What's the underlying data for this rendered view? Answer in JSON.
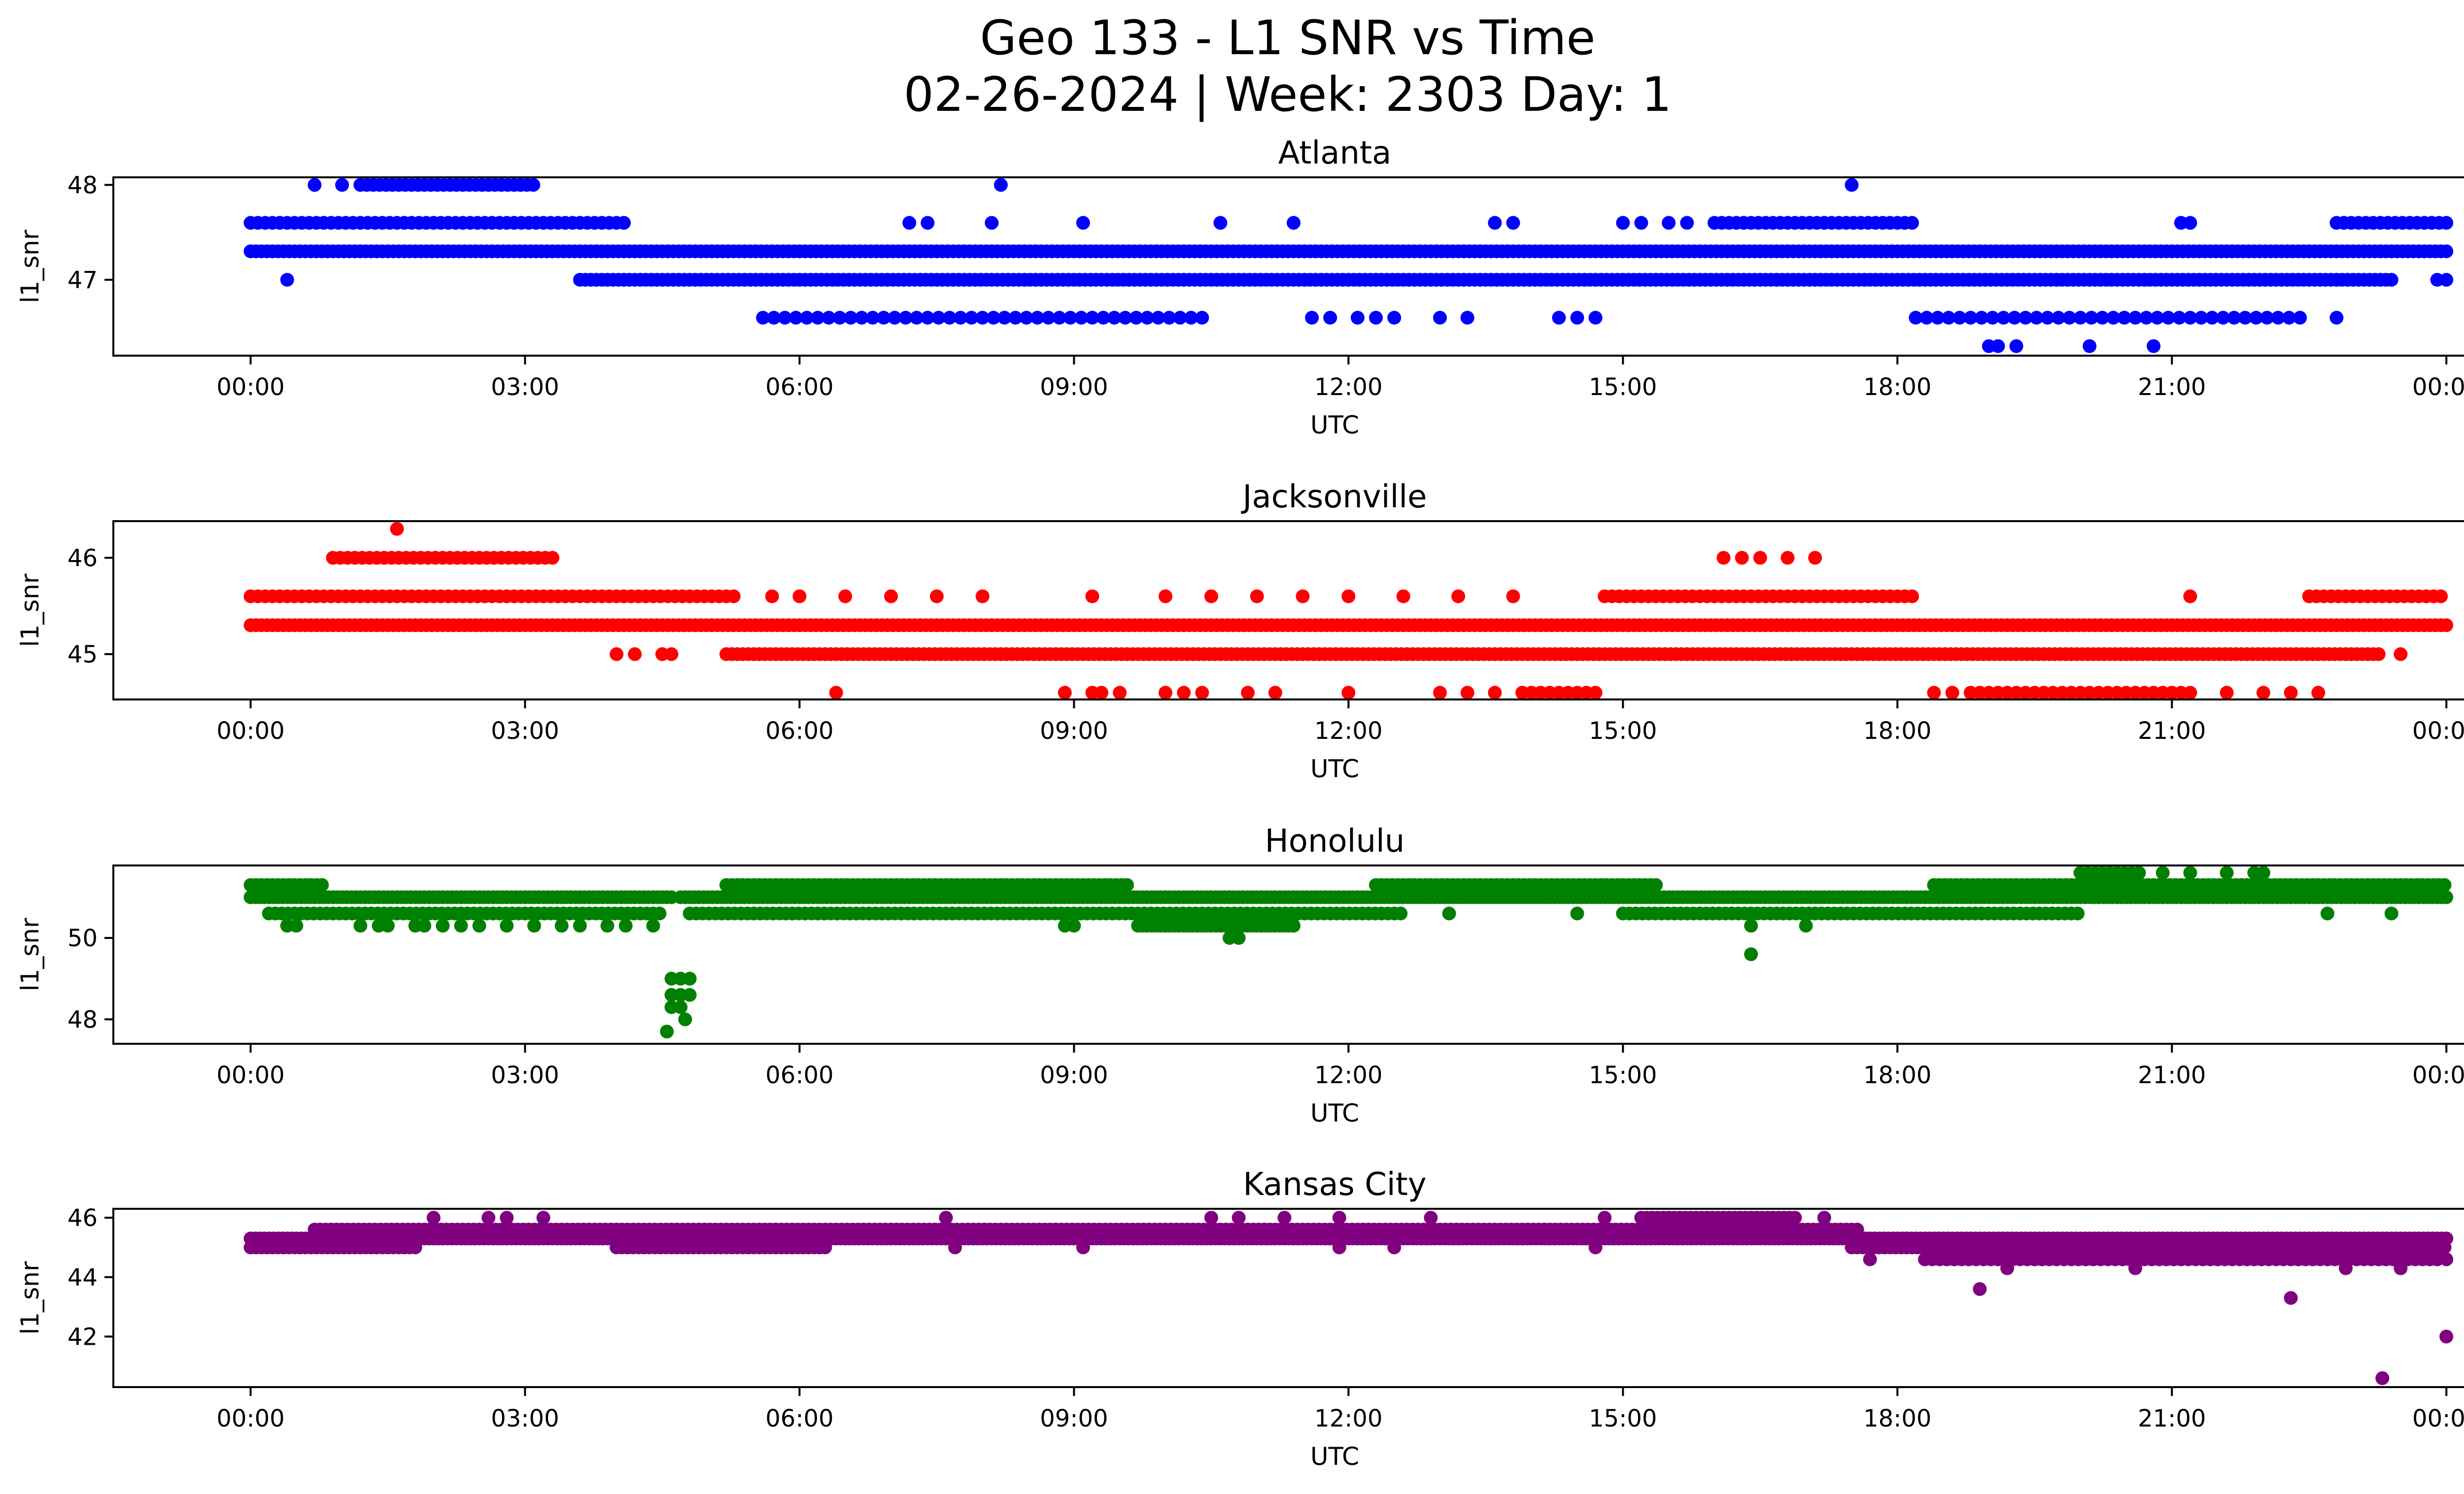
{
  "figure": {
    "title_line1": "Geo 133 - L1 SNR vs Time",
    "title_line2": "02-26-2024 | Week: 2303 Day: 1"
  },
  "chart_data": [
    {
      "type": "scatter",
      "title": "Atlanta",
      "xlabel": "UTC",
      "ylabel": "l1_snr",
      "color": "#0000ff",
      "xlim": [
        -1.5,
        25.2
      ],
      "ylim": [
        46.2,
        48.08
      ],
      "xticks": [
        0,
        3,
        6,
        9,
        12,
        15,
        18,
        21,
        24
      ],
      "xtick_labels": [
        "00:00",
        "03:00",
        "06:00",
        "09:00",
        "12:00",
        "15:00",
        "18:00",
        "21:00",
        "00:00"
      ],
      "yticks": [
        47,
        48
      ],
      "ytick_labels": [
        "47",
        "48"
      ],
      "bands": [
        {
          "y": 47.3,
          "ranges": [
            [
              0,
              24
            ]
          ],
          "step": 0.06
        },
        {
          "y": 47.6,
          "ranges": [
            [
              0,
              4.1
            ],
            [
              16.0,
              18.2
            ],
            [
              22.8,
              24
            ]
          ],
          "step": 0.08
        },
        {
          "y": 47.0,
          "ranges": [
            [
              3.6,
              23.4
            ]
          ],
          "step": 0.06
        },
        {
          "y": 48.0,
          "ranges": [
            [
              1.2,
              3.1
            ]
          ],
          "step": 0.07
        },
        {
          "y": 46.6,
          "ranges": [
            [
              5.6,
              10.4
            ],
            [
              18.2,
              22.5
            ]
          ],
          "step": 0.12
        }
      ],
      "points": [
        [
          0.4,
          47.0
        ],
        [
          0.7,
          48.0
        ],
        [
          1.0,
          48.0
        ],
        [
          8.2,
          48.0
        ],
        [
          17.5,
          48.0
        ],
        [
          7.2,
          47.6
        ],
        [
          7.4,
          47.6
        ],
        [
          8.1,
          47.6
        ],
        [
          9.1,
          47.6
        ],
        [
          10.6,
          47.6
        ],
        [
          11.4,
          47.6
        ],
        [
          13.6,
          47.6
        ],
        [
          13.8,
          47.6
        ],
        [
          15.0,
          47.6
        ],
        [
          15.2,
          47.6
        ],
        [
          15.5,
          47.6
        ],
        [
          15.7,
          47.6
        ],
        [
          21.1,
          47.6
        ],
        [
          21.2,
          47.6
        ],
        [
          11.6,
          46.6
        ],
        [
          11.8,
          46.6
        ],
        [
          12.1,
          46.6
        ],
        [
          12.3,
          46.6
        ],
        [
          12.5,
          46.6
        ],
        [
          13.0,
          46.6
        ],
        [
          13.3,
          46.6
        ],
        [
          14.3,
          46.6
        ],
        [
          14.5,
          46.6
        ],
        [
          14.7,
          46.6
        ],
        [
          22.8,
          46.6
        ],
        [
          19.0,
          46.3
        ],
        [
          19.1,
          46.3
        ],
        [
          19.3,
          46.3
        ],
        [
          20.1,
          46.3
        ],
        [
          20.8,
          46.3
        ],
        [
          23.9,
          47.0
        ],
        [
          24.0,
          47.0
        ]
      ]
    },
    {
      "type": "scatter",
      "title": "Jacksonville",
      "xlabel": "UTC",
      "ylabel": "l1_snr",
      "color": "#ff0000",
      "xlim": [
        -1.5,
        25.2
      ],
      "ylim": [
        44.53,
        46.38
      ],
      "xticks": [
        0,
        3,
        6,
        9,
        12,
        15,
        18,
        21,
        24
      ],
      "xtick_labels": [
        "00:00",
        "03:00",
        "06:00",
        "09:00",
        "12:00",
        "15:00",
        "18:00",
        "21:00",
        "00:00"
      ],
      "yticks": [
        45,
        46
      ],
      "ytick_labels": [
        "45",
        "46"
      ],
      "bands": [
        {
          "y": 45.3,
          "ranges": [
            [
              0,
              24
            ]
          ],
          "step": 0.06
        },
        {
          "y": 45.6,
          "ranges": [
            [
              0,
              5.3
            ],
            [
              14.8,
              18.2
            ],
            [
              22.5,
              24
            ]
          ],
          "step": 0.08
        },
        {
          "y": 45.0,
          "ranges": [
            [
              5.2,
              23.3
            ]
          ],
          "step": 0.06
        },
        {
          "y": 46.0,
          "ranges": [
            [
              0.9,
              3.3
            ]
          ],
          "step": 0.08
        },
        {
          "y": 44.6,
          "ranges": [
            [
              18.8,
              21.2
            ],
            [
              13.9,
              14.7
            ]
          ],
          "step": 0.1
        }
      ],
      "points": [
        [
          1.6,
          46.3
        ],
        [
          16.1,
          46.0
        ],
        [
          16.3,
          46.0
        ],
        [
          16.5,
          46.0
        ],
        [
          16.8,
          46.0
        ],
        [
          17.1,
          46.0
        ],
        [
          4.0,
          45.0
        ],
        [
          4.2,
          45.0
        ],
        [
          4.5,
          45.0
        ],
        [
          4.6,
          45.0
        ],
        [
          23.5,
          45.0
        ],
        [
          5.7,
          45.6
        ],
        [
          6.0,
          45.6
        ],
        [
          6.5,
          45.6
        ],
        [
          7.0,
          45.6
        ],
        [
          7.5,
          45.6
        ],
        [
          8.0,
          45.6
        ],
        [
          9.2,
          45.6
        ],
        [
          10.0,
          45.6
        ],
        [
          10.5,
          45.6
        ],
        [
          11.0,
          45.6
        ],
        [
          11.5,
          45.6
        ],
        [
          12.0,
          45.6
        ],
        [
          12.6,
          45.6
        ],
        [
          13.2,
          45.6
        ],
        [
          13.8,
          45.6
        ],
        [
          21.2,
          45.6
        ],
        [
          6.4,
          44.6
        ],
        [
          8.9,
          44.6
        ],
        [
          9.2,
          44.6
        ],
        [
          9.3,
          44.6
        ],
        [
          9.5,
          44.6
        ],
        [
          10.0,
          44.6
        ],
        [
          10.2,
          44.6
        ],
        [
          10.4,
          44.6
        ],
        [
          10.9,
          44.6
        ],
        [
          11.2,
          44.6
        ],
        [
          12.0,
          44.6
        ],
        [
          13.0,
          44.6
        ],
        [
          13.3,
          44.6
        ],
        [
          13.6,
          44.6
        ],
        [
          18.4,
          44.6
        ],
        [
          18.6,
          44.6
        ],
        [
          21.6,
          44.6
        ],
        [
          22.0,
          44.6
        ],
        [
          22.3,
          44.6
        ],
        [
          22.6,
          44.6
        ]
      ]
    },
    {
      "type": "scatter",
      "title": "Honolulu",
      "xlabel": "UTC",
      "ylabel": "l1_snr",
      "color": "#008000",
      "xlim": [
        -1.5,
        25.2
      ],
      "ylim": [
        47.4,
        51.78
      ],
      "xticks": [
        0,
        3,
        6,
        9,
        12,
        15,
        18,
        21,
        24
      ],
      "xtick_labels": [
        "00:00",
        "03:00",
        "06:00",
        "09:00",
        "12:00",
        "15:00",
        "18:00",
        "21:00",
        "00:00"
      ],
      "yticks": [
        48,
        50
      ],
      "ytick_labels": [
        "48",
        "50"
      ],
      "bands": [
        {
          "y": 51.0,
          "ranges": [
            [
              0,
              4.6
            ],
            [
              4.7,
              24
            ]
          ],
          "step": 0.05
        },
        {
          "y": 51.3,
          "ranges": [
            [
              0,
              0.8
            ],
            [
              5.2,
              9.6
            ],
            [
              12.3,
              15.4
            ],
            [
              18.4,
              24
            ]
          ],
          "step": 0.06
        },
        {
          "y": 50.6,
          "ranges": [
            [
              0.2,
              4.5
            ],
            [
              4.8,
              12.6
            ],
            [
              15.0,
              20.0
            ]
          ],
          "step": 0.07
        },
        {
          "y": 50.3,
          "ranges": [
            [
              9.7,
              11.4
            ]
          ],
          "step": 0.05
        },
        {
          "y": 51.6,
          "ranges": [
            [
              20.0,
              20.7
            ]
          ],
          "step": 0.08
        }
      ],
      "points": [
        [
          0.4,
          50.3
        ],
        [
          0.5,
          50.3
        ],
        [
          1.2,
          50.3
        ],
        [
          1.4,
          50.3
        ],
        [
          1.5,
          50.3
        ],
        [
          1.8,
          50.3
        ],
        [
          1.9,
          50.3
        ],
        [
          2.1,
          50.3
        ],
        [
          2.3,
          50.3
        ],
        [
          2.5,
          50.3
        ],
        [
          2.8,
          50.3
        ],
        [
          3.1,
          50.3
        ],
        [
          3.4,
          50.3
        ],
        [
          3.6,
          50.3
        ],
        [
          3.9,
          50.3
        ],
        [
          4.1,
          50.3
        ],
        [
          4.4,
          50.3
        ],
        [
          4.6,
          49.0
        ],
        [
          4.7,
          49.0
        ],
        [
          4.8,
          49.0
        ],
        [
          4.6,
          48.6
        ],
        [
          4.7,
          48.6
        ],
        [
          4.8,
          48.6
        ],
        [
          4.6,
          48.3
        ],
        [
          4.7,
          48.3
        ],
        [
          4.75,
          48.0
        ],
        [
          4.55,
          47.7
        ],
        [
          8.9,
          50.3
        ],
        [
          9.0,
          50.3
        ],
        [
          10.7,
          50.0
        ],
        [
          10.8,
          50.0
        ],
        [
          10.5,
          51.0
        ],
        [
          10.7,
          51.0
        ],
        [
          13.1,
          50.6
        ],
        [
          14.5,
          50.6
        ],
        [
          16.4,
          50.3
        ],
        [
          17.0,
          50.3
        ],
        [
          16.4,
          49.6
        ],
        [
          22.7,
          50.6
        ],
        [
          23.4,
          50.6
        ],
        [
          20.9,
          51.6
        ],
        [
          21.2,
          51.6
        ],
        [
          21.6,
          51.6
        ],
        [
          21.9,
          51.6
        ],
        [
          22.0,
          51.6
        ]
      ]
    },
    {
      "type": "scatter",
      "title": "Kansas City",
      "xlabel": "UTC",
      "ylabel": "l1_snr",
      "color": "#800080",
      "xlim": [
        -1.5,
        25.2
      ],
      "ylim": [
        40.3,
        46.3
      ],
      "xticks": [
        0,
        3,
        6,
        9,
        12,
        15,
        18,
        21,
        24
      ],
      "xtick_labels": [
        "00:00",
        "03:00",
        "06:00",
        "09:00",
        "12:00",
        "15:00",
        "18:00",
        "21:00",
        "00:00"
      ],
      "yticks": [
        42,
        44,
        46
      ],
      "ytick_labels": [
        "42",
        "44",
        "46"
      ],
      "bands": [
        {
          "y": 45.3,
          "ranges": [
            [
              0,
              24
            ]
          ],
          "step": 0.05
        },
        {
          "y": 45.0,
          "ranges": [
            [
              0,
              1.8
            ],
            [
              4.0,
              6.3
            ],
            [
              17.5,
              24
            ]
          ],
          "step": 0.06
        },
        {
          "y": 45.6,
          "ranges": [
            [
              0.7,
              17.6
            ]
          ],
          "step": 0.06
        },
        {
          "y": 46.0,
          "ranges": [
            [
              15.2,
              16.9
            ]
          ],
          "step": 0.06
        },
        {
          "y": 44.6,
          "ranges": [
            [
              18.3,
              23.9
            ]
          ],
          "step": 0.08
        }
      ],
      "points": [
        [
          2.0,
          46.0
        ],
        [
          2.6,
          46.0
        ],
        [
          2.8,
          46.0
        ],
        [
          3.2,
          46.0
        ],
        [
          7.6,
          46.0
        ],
        [
          10.5,
          46.0
        ],
        [
          10.8,
          46.0
        ],
        [
          11.3,
          46.0
        ],
        [
          11.9,
          46.0
        ],
        [
          12.9,
          46.0
        ],
        [
          14.8,
          46.0
        ],
        [
          17.2,
          46.0
        ],
        [
          7.7,
          45.0
        ],
        [
          9.1,
          45.0
        ],
        [
          11.9,
          45.0
        ],
        [
          12.5,
          45.0
        ],
        [
          14.7,
          45.0
        ],
        [
          17.7,
          44.6
        ],
        [
          19.2,
          44.3
        ],
        [
          20.6,
          44.3
        ],
        [
          22.9,
          44.3
        ],
        [
          23.5,
          44.3
        ],
        [
          18.9,
          43.6
        ],
        [
          22.3,
          43.3
        ],
        [
          23.3,
          40.6
        ],
        [
          24.0,
          42.0
        ],
        [
          24.0,
          44.6
        ]
      ]
    }
  ]
}
